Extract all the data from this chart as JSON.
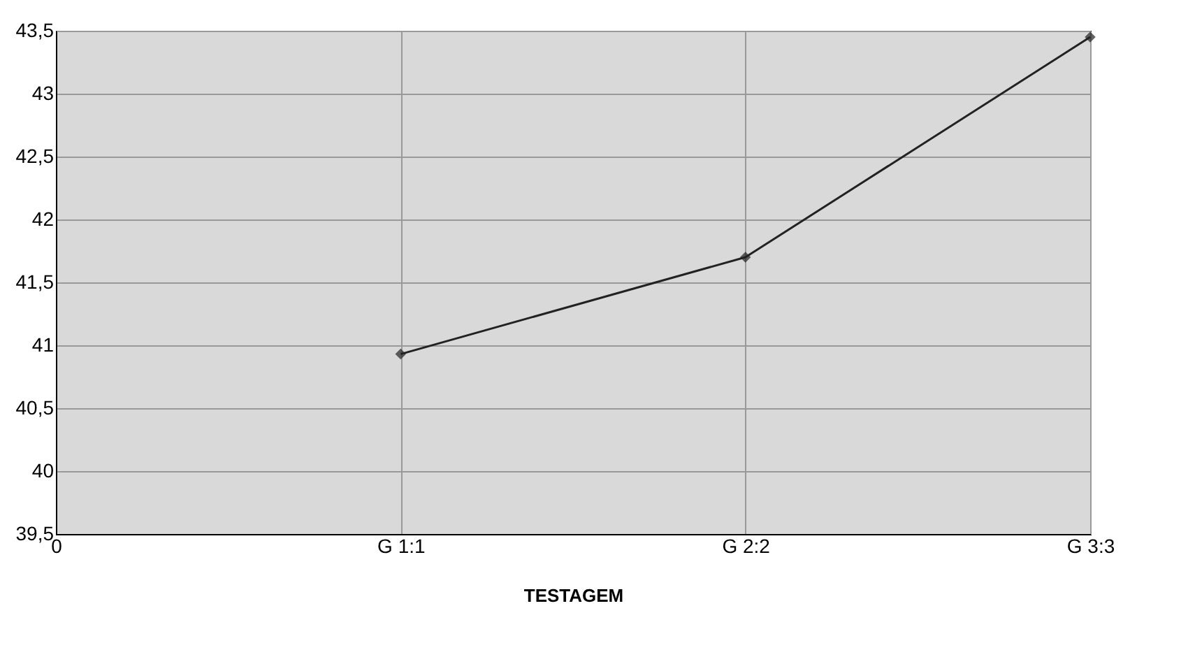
{
  "chart_data": {
    "type": "line",
    "xlabel": "TESTAGEM",
    "categories": [
      "0",
      "G 1:1",
      "G 2:2",
      "G 3:3"
    ],
    "series": [
      {
        "color": "#222222",
        "values": [
          null,
          40.93,
          41.7,
          43.45
        ]
      }
    ],
    "ylim": [
      39.5,
      43.5
    ],
    "yticks": [
      {
        "value": 39.5,
        "label": "39,5"
      },
      40,
      {
        "value": 40.5,
        "label": "40,5"
      },
      41,
      {
        "value": 41.5,
        "label": "41,5"
      },
      42,
      {
        "value": 42.5,
        "label": "42,5"
      },
      43,
      {
        "value": 43.5,
        "label": "43,5"
      }
    ],
    "grid": true,
    "marker": "diamond",
    "line_style": "solid",
    "legend": false
  }
}
